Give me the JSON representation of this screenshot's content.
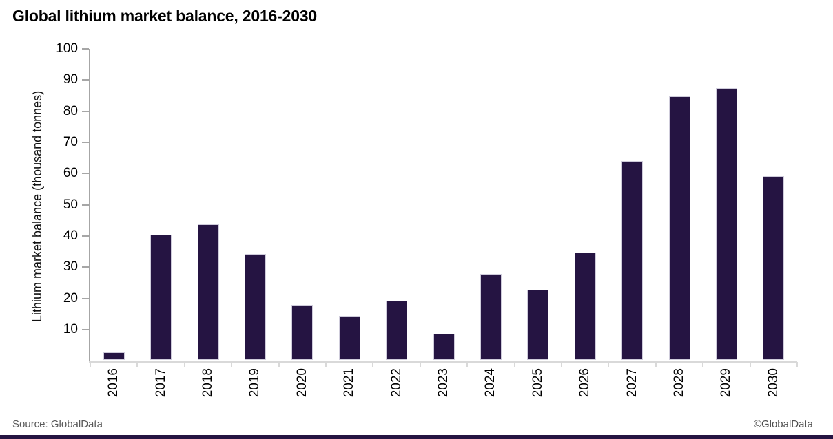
{
  "header": {
    "title": "Global lithium market balance, 2016-2030"
  },
  "chart_data": {
    "type": "bar",
    "title": "Global lithium market balance, 2016-2030",
    "categories": [
      "2016",
      "2017",
      "2018",
      "2019",
      "2020",
      "2021",
      "2022",
      "2023",
      "2024",
      "2025",
      "2026",
      "2027",
      "2028",
      "2029",
      "2030"
    ],
    "values": [
      2.5,
      40.3,
      43.5,
      34.1,
      17.8,
      14.2,
      19.0,
      8.5,
      27.7,
      22.6,
      34.4,
      63.8,
      84.5,
      87.3,
      59.0
    ],
    "xlabel": "",
    "ylabel": "Lithium market balance (thousand tonnes)",
    "ylim": [
      0,
      100
    ],
    "ytick_step": 10,
    "grid": false,
    "legend": false,
    "bar_color": "#251442"
  },
  "footer": {
    "source": "Source: GlobalData",
    "copyright": "©GlobalData"
  },
  "colors": {
    "bar": "#251442",
    "bar_border": "#cfccdb",
    "y_axis": "#a6a6a6",
    "x_axis": "#d9d9d9",
    "text": "#000000",
    "footer_text": "#595959",
    "accent_bar": "#251442"
  }
}
